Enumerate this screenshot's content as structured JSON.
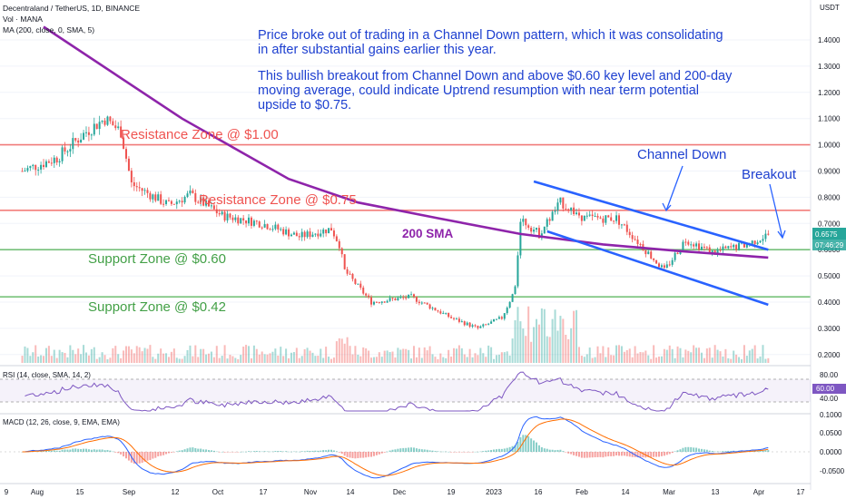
{
  "header": {
    "symbol": "Decentraland / TetherUS, 1D, BINANCE",
    "volume_label": "Vol · MANA",
    "ma_label": "MA (200, close, 0, SMA, 5)",
    "currency": "USDT"
  },
  "annotation": {
    "lines": [
      "Price broke out of trading in a Channel Down pattern, which it was consolidating",
      "in after substantial gains earlier this year.",
      "",
      "This bullish breakout from Channel Down and above $0.60 key level and 200-day",
      "moving average, could indicate Uptrend resumption with near term potential",
      "upside to $0.75."
    ]
  },
  "zones": [
    {
      "label": "Resistance Zone @ $1.00",
      "price": 1.0,
      "kind": "resistance"
    },
    {
      "label": "Resistance Zone @ $0.75",
      "price": 0.75,
      "kind": "resistance"
    },
    {
      "label": "Support Zone @ $0.60",
      "price": 0.6,
      "kind": "support"
    },
    {
      "label": "Support Zone @ $0.42",
      "price": 0.42,
      "kind": "support"
    }
  ],
  "labels": {
    "sma": "200 SMA",
    "channel": "Channel Down",
    "breakout": "Breakout"
  },
  "price_axis": {
    "ticks": [
      "1.4000",
      "1.3000",
      "1.2000",
      "1.1000",
      "1.0000",
      "0.9000",
      "0.8000",
      "0.7000",
      "0.6000",
      "0.5000",
      "0.4000",
      "0.3000",
      "0.2000"
    ],
    "last_price": "0.6575",
    "countdown": "07:46:29"
  },
  "rsi": {
    "label": "RSI (14, close, SMA, 14, 2)",
    "ticks": [
      "80.00",
      "40.00"
    ],
    "last": "60.00"
  },
  "macd": {
    "label": "MACD (12, 26, close, 9, EMA, EMA)",
    "ticks": [
      "0.1000",
      "0.0500",
      "0.0000",
      "-0.0500"
    ]
  },
  "time_axis": [
    "9",
    "Aug",
    "15",
    "Sep",
    "12",
    "Oct",
    "17",
    "Nov",
    "14",
    "Dec",
    "19",
    "2023",
    "16",
    "Feb",
    "14",
    "Mar",
    "13",
    "Apr",
    "17"
  ],
  "colors": {
    "up": "#26a69a",
    "down": "#ef5350",
    "sma": "#8e24aa",
    "channel": "#2962ff",
    "resistance": "#ef5350",
    "support": "#4caf50",
    "annotation": "#1e40d0",
    "rsi": "#7e57c2",
    "macd": "#2962ff",
    "signal": "#ff6d00"
  },
  "chart_data": {
    "type": "candlestick",
    "symbol": "Decentraland / TetherUS",
    "interval": "1D",
    "price_unit": "USDT",
    "period": "Jul 2022 – Apr 2023",
    "price_path": [
      {
        "date": "2022-07-12",
        "close": 0.9
      },
      {
        "date": "2022-07-25",
        "close": 0.95
      },
      {
        "date": "2022-08-05",
        "close": 1.05
      },
      {
        "date": "2022-08-12",
        "close": 1.1
      },
      {
        "date": "2022-08-18",
        "close": 1.05
      },
      {
        "date": "2022-08-22",
        "close": 0.85
      },
      {
        "date": "2022-09-05",
        "close": 0.77
      },
      {
        "date": "2022-09-13",
        "close": 0.81
      },
      {
        "date": "2022-09-25",
        "close": 0.73
      },
      {
        "date": "2022-10-10",
        "close": 0.7
      },
      {
        "date": "2022-10-24",
        "close": 0.65
      },
      {
        "date": "2022-11-05",
        "close": 0.68
      },
      {
        "date": "2022-11-08",
        "close": 0.62
      },
      {
        "date": "2022-11-10",
        "close": 0.52
      },
      {
        "date": "2022-11-20",
        "close": 0.4
      },
      {
        "date": "2022-12-05",
        "close": 0.42
      },
      {
        "date": "2022-12-20",
        "close": 0.34
      },
      {
        "date": "2022-12-30",
        "close": 0.3
      },
      {
        "date": "2023-01-08",
        "close": 0.34
      },
      {
        "date": "2023-01-13",
        "close": 0.45
      },
      {
        "date": "2023-01-15",
        "close": 0.72
      },
      {
        "date": "2023-01-22",
        "close": 0.66
      },
      {
        "date": "2023-01-30",
        "close": 0.78
      },
      {
        "date": "2023-02-08",
        "close": 0.72
      },
      {
        "date": "2023-02-20",
        "close": 0.72
      },
      {
        "date": "2023-03-01",
        "close": 0.62
      },
      {
        "date": "2023-03-10",
        "close": 0.52
      },
      {
        "date": "2023-03-18",
        "close": 0.64
      },
      {
        "date": "2023-03-28",
        "close": 0.59
      },
      {
        "date": "2023-04-10",
        "close": 0.62
      },
      {
        "date": "2023-04-18",
        "close": 0.6575
      }
    ],
    "sma200_path": [
      {
        "date": "2022-07-20",
        "value": 1.45
      },
      {
        "date": "2022-09-10",
        "value": 1.1
      },
      {
        "date": "2022-10-20",
        "value": 0.87
      },
      {
        "date": "2022-11-15",
        "value": 0.78
      },
      {
        "date": "2022-12-15",
        "value": 0.72
      },
      {
        "date": "2023-01-15",
        "value": 0.66
      },
      {
        "date": "2023-02-15",
        "value": 0.62
      },
      {
        "date": "2023-03-15",
        "value": 0.595
      },
      {
        "date": "2023-04-18",
        "value": 0.57
      }
    ],
    "channel_upper": [
      {
        "date": "2023-01-20",
        "value": 0.86
      },
      {
        "date": "2023-04-18",
        "value": 0.6
      }
    ],
    "channel_lower": [
      {
        "date": "2023-01-25",
        "value": 0.67
      },
      {
        "date": "2023-04-18",
        "value": 0.39
      }
    ],
    "levels": [
      1.0,
      0.75,
      0.6,
      0.42
    ],
    "last_price": 0.6575,
    "ylim": [
      0.15,
      1.5
    ]
  }
}
